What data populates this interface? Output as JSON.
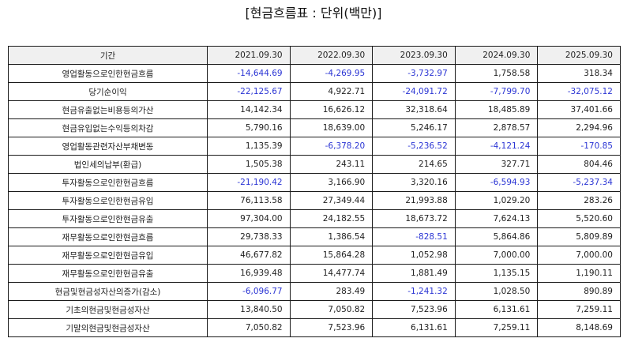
{
  "title": "[현금흐름표 : 단위(백만)]",
  "colors": {
    "negative": "#2b35d4",
    "positive": "#222222",
    "header_bg": "#f0f0f0",
    "border": "#1a1a1a"
  },
  "table": {
    "header": [
      "기간",
      "2021.09.30",
      "2022.09.30",
      "2023.09.30",
      "2024.09.30",
      "2025.09.30"
    ],
    "rows": [
      {
        "label": "영업활동으로인한현금흐름",
        "values": [
          "-14,644.69",
          "-4,269.95",
          "-3,732.97",
          "1,758.58",
          "318.34"
        ]
      },
      {
        "label": "당기순이익",
        "values": [
          "-22,125.67",
          "4,922.71",
          "-24,091.72",
          "-7,799.70",
          "-32,075.12"
        ]
      },
      {
        "label": "현금유출없는비용등의가산",
        "values": [
          "14,142.34",
          "16,626.12",
          "32,318.64",
          "18,485.89",
          "37,401.66"
        ]
      },
      {
        "label": "현금유입없는수익등의차감",
        "values": [
          "5,790.16",
          "18,639.00",
          "5,246.17",
          "2,878.57",
          "2,294.96"
        ]
      },
      {
        "label": "영업활동관련자산부채변동",
        "values": [
          "1,135.39",
          "-6,378.20",
          "-5,236.52",
          "-4,121.24",
          "-170.85"
        ]
      },
      {
        "label": "법인세의납부(환급)",
        "values": [
          "1,505.38",
          "243.11",
          "214.65",
          "327.71",
          "804.46"
        ]
      },
      {
        "label": "투자활동으로인한현금흐름",
        "values": [
          "-21,190.42",
          "3,166.90",
          "3,320.16",
          "-6,594.93",
          "-5,237.34"
        ]
      },
      {
        "label": "투자활동으로인한현금유입",
        "values": [
          "76,113.58",
          "27,349.44",
          "21,993.88",
          "1,029.20",
          "283.26"
        ]
      },
      {
        "label": "투자활동으로인한현금유출",
        "values": [
          "97,304.00",
          "24,182.55",
          "18,673.72",
          "7,624.13",
          "5,520.60"
        ]
      },
      {
        "label": "재무활동으로인한현금흐름",
        "values": [
          "29,738.33",
          "1,386.54",
          "-828.51",
          "5,864.86",
          "5,809.89"
        ]
      },
      {
        "label": "재무활동으로인한현금유입",
        "values": [
          "46,677.82",
          "15,864.28",
          "1,052.98",
          "7,000.00",
          "7,000.00"
        ]
      },
      {
        "label": "재무활동으로인한현금유출",
        "values": [
          "16,939.48",
          "14,477.74",
          "1,881.49",
          "1,135.15",
          "1,190.11"
        ]
      },
      {
        "label": "현금및현금성자산의증가(감소)",
        "values": [
          "-6,096.77",
          "283.49",
          "-1,241.32",
          "1,028.50",
          "890.89"
        ]
      },
      {
        "label": "기초의현금및현금성자산",
        "values": [
          "13,840.50",
          "7,050.82",
          "7,523.96",
          "6,131.61",
          "7,259.11"
        ]
      },
      {
        "label": "기말의현금및현금성자산",
        "values": [
          "7,050.82",
          "7,523.96",
          "6,131.61",
          "7,259.11",
          "8,148.69"
        ]
      }
    ]
  }
}
